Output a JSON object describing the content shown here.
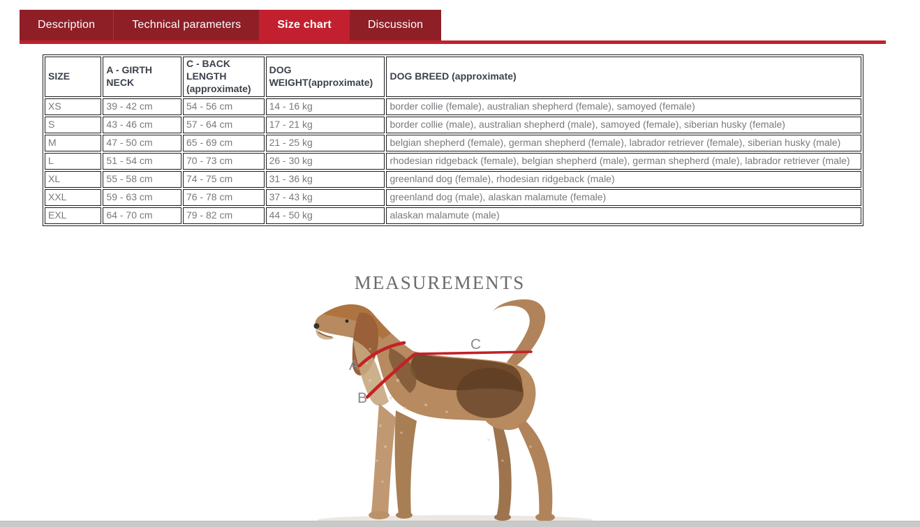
{
  "tabs": {
    "items": [
      {
        "label": "Description",
        "active": false
      },
      {
        "label": "Technical parameters",
        "active": false
      },
      {
        "label": "Size chart",
        "active": true
      },
      {
        "label": "Discussion",
        "active": false
      }
    ]
  },
  "size_table": {
    "columns": [
      "SIZE",
      "A - GIRTH NECK",
      "C - BACK LENGTH (approximate)",
      "DOG WEIGHT(approximate)",
      "DOG BREED (approximate)"
    ],
    "field_names": [
      "size",
      "girth_neck",
      "back_length",
      "weight",
      "breeds"
    ],
    "rows": [
      {
        "size": "XS",
        "girth_neck": "39 - 42 cm",
        "back_length": "54 - 56 cm",
        "weight": "14 - 16 kg",
        "breeds": "border collie (female), australian shepherd (female), samoyed (female)"
      },
      {
        "size": "S",
        "girth_neck": "43 - 46 cm",
        "back_length": "57 - 64 cm",
        "weight": "17 - 21 kg",
        "breeds": "border collie (male), australian shepherd (male), samoyed (female), siberian husky (female)"
      },
      {
        "size": "M",
        "girth_neck": "47 - 50 cm",
        "back_length": "65 - 69 cm",
        "weight": "21 - 25 kg",
        "breeds": "belgian shepherd (female), german shepherd (female), labrador retriever (female), siberian husky (male)"
      },
      {
        "size": "L",
        "girth_neck": "51 - 54 cm",
        "back_length": "70 - 73 cm",
        "weight": "26 - 30 kg",
        "breeds": "rhodesian ridgeback (female), belgian shepherd (male), german shepherd (male), labrador retriever (male)"
      },
      {
        "size": "XL",
        "girth_neck": "55 - 58 cm",
        "back_length": "74 - 75 cm",
        "weight": "31 - 36 kg",
        "breeds": "greenland dog (female), rhodesian ridgeback (male)"
      },
      {
        "size": "XXL",
        "girth_neck": "59 - 63 cm",
        "back_length": "76 - 78 cm",
        "weight": "37 - 43 kg",
        "breeds": "greenland dog (male), alaskan malamute (female)"
      },
      {
        "size": "EXL",
        "girth_neck": "64 - 70 cm",
        "back_length": "79 - 82 cm",
        "weight": "44 - 50 kg",
        "breeds": "alaskan malamute (male)"
      }
    ]
  },
  "measurements": {
    "title": "MEASUREMENTS",
    "label_a": "A",
    "label_b": "B",
    "label_c": "C"
  },
  "colors": {
    "tab_inactive": "#8E1F27",
    "tab_active": "#C2202E",
    "underline": "#C2202E",
    "table_border": "#1A1A1A",
    "header_text": "#3C424B",
    "cell_text": "#77797E",
    "measure_line": "#C32127",
    "title_text": "#6B6B6B",
    "scrollbar": "#C9C9C9"
  }
}
